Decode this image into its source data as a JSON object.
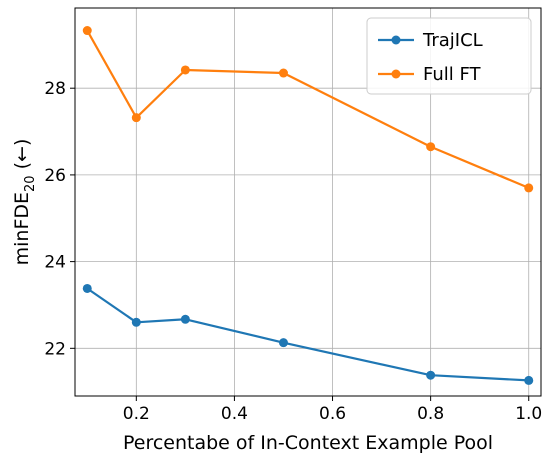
{
  "chart_data": {
    "type": "line",
    "xlabel": "Percentabe of In-Context Example Pool",
    "ylabel_main": "minFDE",
    "ylabel_sub": "20",
    "ylabel_suffix": " (←)",
    "xlim": [
      0.075,
      1.025
    ],
    "ylim": [
      20.9,
      29.85
    ],
    "xticks": [
      0.2,
      0.4,
      0.6,
      0.8,
      1.0
    ],
    "xtick_labels": [
      "0.2",
      "0.4",
      "0.6",
      "0.8",
      "1.0"
    ],
    "yticks": [
      22,
      24,
      26,
      28
    ],
    "ytick_labels": [
      "22",
      "24",
      "26",
      "28"
    ],
    "grid": true,
    "legend_position": "top-right",
    "x": [
      0.1,
      0.2,
      0.3,
      0.5,
      0.8,
      1.0
    ],
    "series": [
      {
        "name": "TrajICL",
        "color": "#1f77b4",
        "values": [
          23.38,
          22.6,
          22.67,
          22.13,
          21.38,
          21.26
        ]
      },
      {
        "name": "Full FT",
        "color": "#ff7f0e",
        "values": [
          29.33,
          27.32,
          28.42,
          28.35,
          26.65,
          25.7
        ]
      }
    ]
  }
}
